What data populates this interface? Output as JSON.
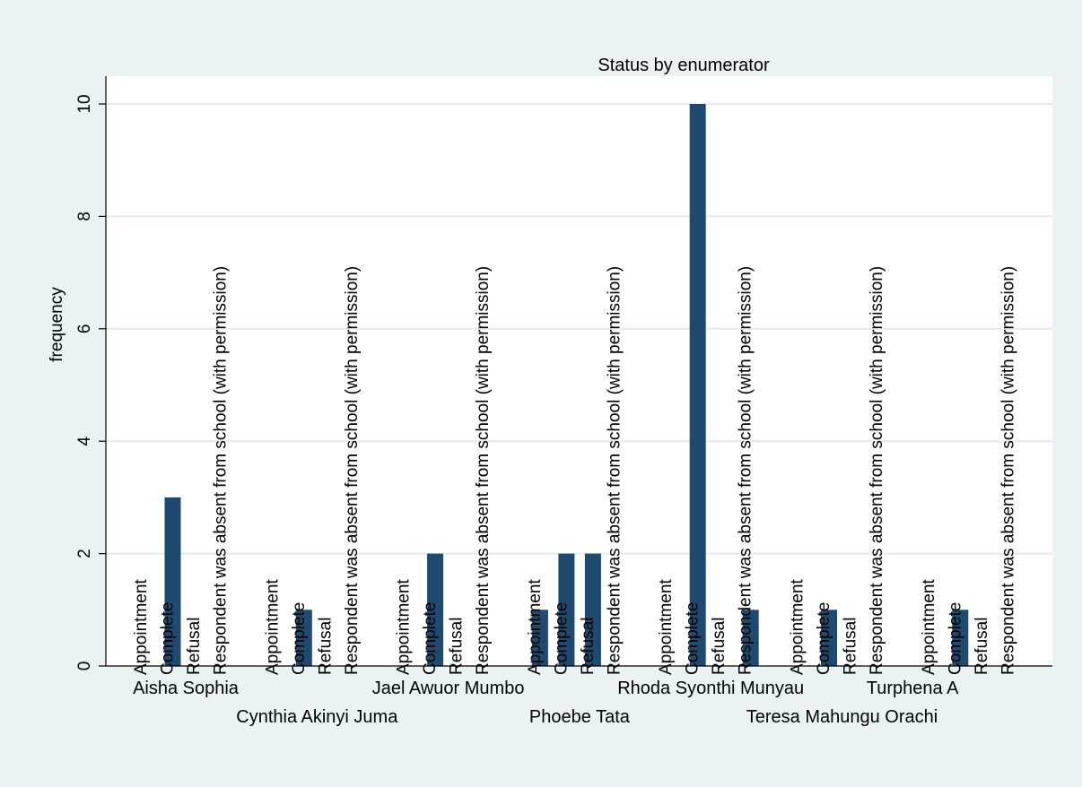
{
  "chart_data": {
    "type": "bar",
    "title": "Status by enumerator",
    "xlabel": "",
    "ylabel": "frequency",
    "ylim": [
      0,
      10.5
    ],
    "yticks": [
      0,
      2,
      4,
      6,
      8,
      10
    ],
    "grid": true,
    "bar_color": "#1f4a6f",
    "statuses": [
      "Appointment",
      "Complete",
      "Refusal",
      "Respondent was absent from school (with permission)"
    ],
    "groups": [
      {
        "name": "Aisha Sophia",
        "values": [
          0,
          3,
          0,
          0
        ]
      },
      {
        "name": "Cynthia Akinyi Juma",
        "values": [
          0,
          1,
          0,
          0
        ]
      },
      {
        "name": "Jael Awuor Mumbo",
        "values": [
          0,
          2,
          0,
          0
        ]
      },
      {
        "name": "Phoebe Tata",
        "values": [
          1,
          2,
          2,
          0
        ]
      },
      {
        "name": "Rhoda Syonthi Munyau",
        "values": [
          0,
          10,
          0,
          1
        ]
      },
      {
        "name": "Teresa Mahungu Orachi",
        "values": [
          0,
          1,
          0,
          0
        ]
      },
      {
        "name": "Turphena A",
        "values": [
          0,
          1,
          0,
          0
        ]
      }
    ]
  }
}
